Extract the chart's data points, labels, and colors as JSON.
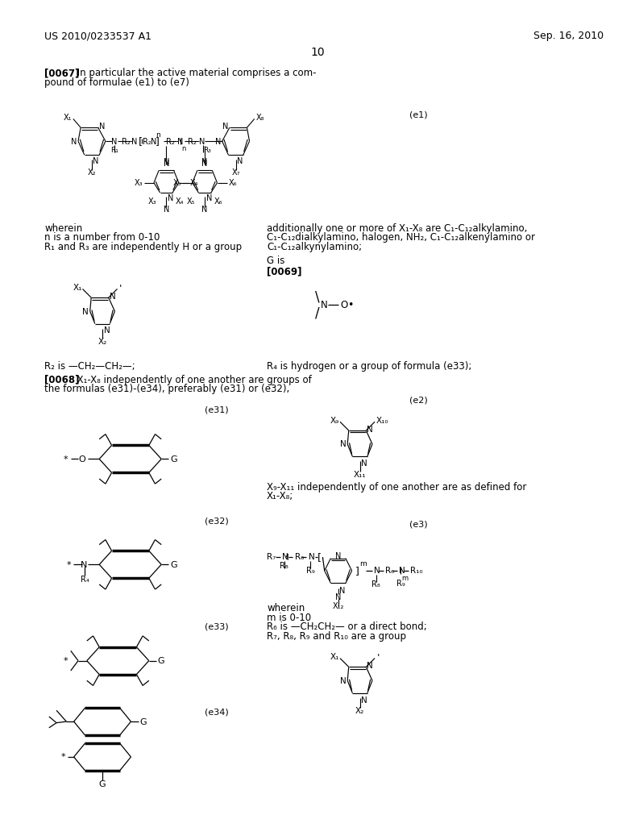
{
  "bg_color": "#ffffff",
  "header_left": "US 2010/0233537 A1",
  "header_right": "Sep. 16, 2010",
  "page_number": "10"
}
